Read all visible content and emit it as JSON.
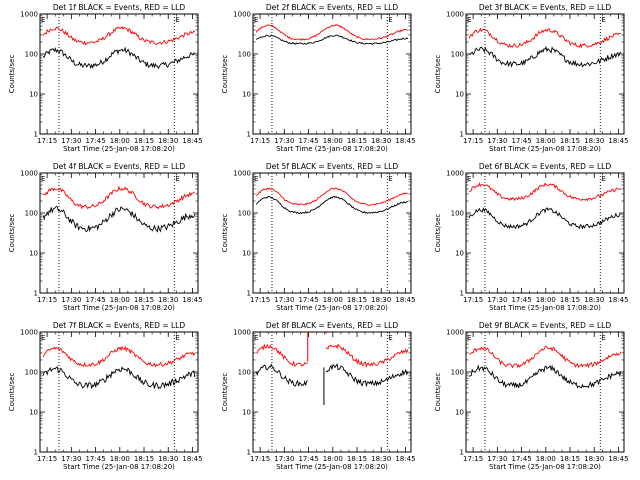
{
  "chart_data": [
    {
      "type": "line",
      "title": "Det 1f BLACK = Events, RED = LLD",
      "xlabel": "Start Time (25-Jan-08 17:08:20)",
      "ylabel": "Counts/sec",
      "yscale": "log",
      "ylim": [
        1,
        1000
      ],
      "xticks": [
        "17:15",
        "17:30",
        "17:45",
        "18:00",
        "18:15",
        "18:30",
        "18:45"
      ],
      "markers": [
        "E",
        "E"
      ],
      "grid": false,
      "legend": "none",
      "series": [
        {
          "color": "#000000",
          "base": 50,
          "amp": 75,
          "jitter": 0.07
        },
        {
          "color": "#ff0000",
          "base": 190,
          "amp": 250,
          "jitter": 0.05
        }
      ]
    },
    {
      "type": "line",
      "title": "Det 2f BLACK = Events, RED = LLD",
      "xlabel": "Start Time (25-Jan-08 17:08:20)",
      "ylabel": "Counts/sec",
      "yscale": "log",
      "ylim": [
        1,
        1000
      ],
      "xticks": [
        "17:15",
        "17:30",
        "17:45",
        "18:00",
        "18:15",
        "18:30",
        "18:45"
      ],
      "markers": [
        "E",
        "E"
      ],
      "grid": false,
      "legend": "none",
      "series": [
        {
          "color": "#000000",
          "base": 180,
          "amp": 110,
          "jitter": 0.02
        },
        {
          "color": "#ff0000",
          "base": 230,
          "amp": 290,
          "jitter": 0.02
        }
      ]
    },
    {
      "type": "line",
      "title": "Det 3f BLACK = Events, RED = LLD",
      "xlabel": "Start Time (25-Jan-08 17:08:20)",
      "ylabel": "Counts/sec",
      "yscale": "log",
      "ylim": [
        1,
        1000
      ],
      "xticks": [
        "17:15",
        "17:30",
        "17:45",
        "18:00",
        "18:15",
        "18:30",
        "18:45"
      ],
      "markers": [
        "E",
        "E"
      ],
      "grid": false,
      "legend": "none",
      "series": [
        {
          "color": "#000000",
          "base": 55,
          "amp": 75,
          "jitter": 0.07
        },
        {
          "color": "#ff0000",
          "base": 160,
          "amp": 240,
          "jitter": 0.05
        }
      ]
    },
    {
      "type": "line",
      "title": "Det 4f BLACK = Events, RED = LLD",
      "xlabel": "Start Time (25-Jan-08 17:08:20)",
      "ylabel": "Counts/sec",
      "yscale": "log",
      "ylim": [
        1,
        1000
      ],
      "xticks": [
        "17:15",
        "17:30",
        "17:45",
        "18:00",
        "18:15",
        "18:30",
        "18:45"
      ],
      "markers": [
        "E",
        "E"
      ],
      "grid": false,
      "legend": "none",
      "series": [
        {
          "color": "#000000",
          "base": 40,
          "amp": 85,
          "jitter": 0.08
        },
        {
          "color": "#ff0000",
          "base": 140,
          "amp": 270,
          "jitter": 0.05
        }
      ]
    },
    {
      "type": "line",
      "title": "Det 5f BLACK = Events, RED = LLD",
      "xlabel": "Start Time (25-Jan-08 17:08:20)",
      "ylabel": "Counts/sec",
      "yscale": "log",
      "ylim": [
        1,
        1000
      ],
      "xticks": [
        "17:15",
        "17:30",
        "17:45",
        "18:00",
        "18:15",
        "18:30",
        "18:45"
      ],
      "markers": [
        "E",
        "E"
      ],
      "grid": false,
      "legend": "none",
      "series": [
        {
          "color": "#000000",
          "base": 100,
          "amp": 150,
          "jitter": 0.02
        },
        {
          "color": "#ff0000",
          "base": 160,
          "amp": 250,
          "jitter": 0.02
        }
      ]
    },
    {
      "type": "line",
      "title": "Det 6f BLACK = Events, RED = LLD",
      "xlabel": "Start Time (25-Jan-08 17:08:20)",
      "ylabel": "Counts/sec",
      "yscale": "log",
      "ylim": [
        1,
        1000
      ],
      "xticks": [
        "17:15",
        "17:30",
        "17:45",
        "18:00",
        "18:15",
        "18:30",
        "18:45"
      ],
      "markers": [
        "E",
        "E"
      ],
      "grid": false,
      "legend": "none",
      "series": [
        {
          "color": "#000000",
          "base": 45,
          "amp": 75,
          "jitter": 0.05
        },
        {
          "color": "#ff0000",
          "base": 220,
          "amp": 300,
          "jitter": 0.04
        }
      ]
    },
    {
      "type": "line",
      "title": "Det 7f BLACK = Events, RED = LLD",
      "xlabel": "Start Time (25-Jan-08 17:08:20)",
      "ylabel": "Counts/sec",
      "yscale": "log",
      "ylim": [
        1,
        1000
      ],
      "xticks": [
        "17:15",
        "17:30",
        "17:45",
        "18:00",
        "18:15",
        "18:30",
        "18:45"
      ],
      "markers": [
        "E",
        "E"
      ],
      "grid": false,
      "legend": "none",
      "series": [
        {
          "color": "#000000",
          "base": 45,
          "amp": 75,
          "jitter": 0.08
        },
        {
          "color": "#ff0000",
          "base": 150,
          "amp": 240,
          "jitter": 0.05
        }
      ]
    },
    {
      "type": "line",
      "title": "Det 8f BLACK = Events, RED = LLD",
      "xlabel": "Start Time (25-Jan-08 17:08:20)",
      "ylabel": "Counts/sec",
      "yscale": "log",
      "ylim": [
        1,
        1000
      ],
      "xticks": [
        "17:15",
        "17:30",
        "17:45",
        "18:00",
        "18:15",
        "18:30",
        "18:45"
      ],
      "markers": [
        "E",
        "E"
      ],
      "grid": false,
      "legend": "none",
      "gap": [
        0.34,
        0.46
      ],
      "series": [
        {
          "color": "#000000",
          "base": 50,
          "amp": 85,
          "jitter": 0.07
        },
        {
          "color": "#ff0000",
          "base": 150,
          "amp": 300,
          "jitter": 0.05
        }
      ]
    },
    {
      "type": "line",
      "title": "Det 9f BLACK = Events, RED = LLD",
      "xlabel": "Start Time (25-Jan-08 17:08:20)",
      "ylabel": "Counts/sec",
      "yscale": "log",
      "ylim": [
        1,
        1000
      ],
      "xticks": [
        "17:15",
        "17:30",
        "17:45",
        "18:00",
        "18:15",
        "18:30",
        "18:45"
      ],
      "markers": [
        "E",
        "E"
      ],
      "grid": false,
      "legend": "none",
      "series": [
        {
          "color": "#000000",
          "base": 45,
          "amp": 80,
          "jitter": 0.07
        },
        {
          "color": "#ff0000",
          "base": 140,
          "amp": 260,
          "jitter": 0.05
        }
      ]
    }
  ]
}
